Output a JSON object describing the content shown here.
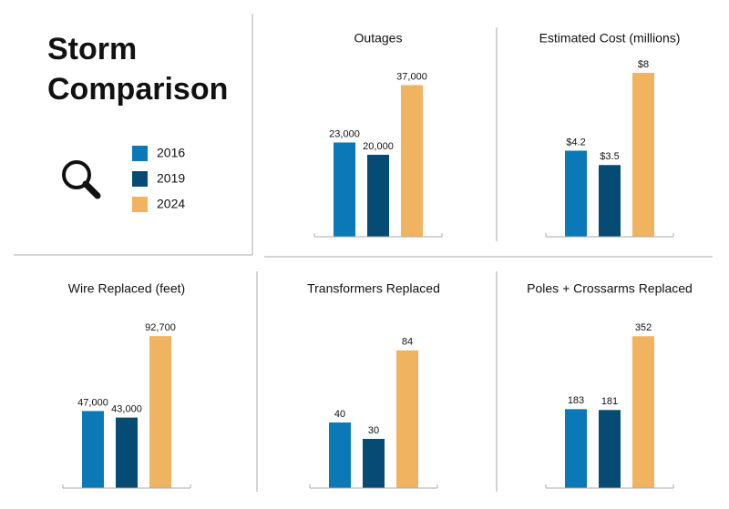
{
  "title": "Storm Comparison",
  "categories": [
    "2016",
    "2019",
    "2024"
  ],
  "colors": [
    "#0b78b8",
    "#064b73",
    "#f0b360"
  ],
  "chart_data": [
    {
      "type": "bar",
      "title": "Outages",
      "values": [
        23000,
        20000,
        37000
      ],
      "value_labels": [
        "23,000",
        "20,000",
        "37,000"
      ],
      "ylim": [
        0,
        40000
      ]
    },
    {
      "type": "bar",
      "title": "Estimated Cost (millions)",
      "values": [
        4.2,
        3.5,
        8
      ],
      "value_labels": [
        "$4.2",
        "$3.5",
        "$8"
      ],
      "ylim": [
        0,
        8
      ]
    },
    {
      "type": "bar",
      "title": "Wire Replaced (feet)",
      "values": [
        47000,
        43000,
        92700
      ],
      "value_labels": [
        "47,000",
        "43,000",
        "92,700"
      ],
      "ylim": [
        0,
        100000
      ]
    },
    {
      "type": "bar",
      "title": "Transformers Replaced",
      "values": [
        40,
        30,
        84
      ],
      "ylim": [
        0,
        100
      ]
    },
    {
      "type": "bar",
      "title": "Poles + Crossarms Replaced",
      "values": [
        183,
        181,
        352
      ],
      "ylim": [
        0,
        380
      ]
    }
  ]
}
